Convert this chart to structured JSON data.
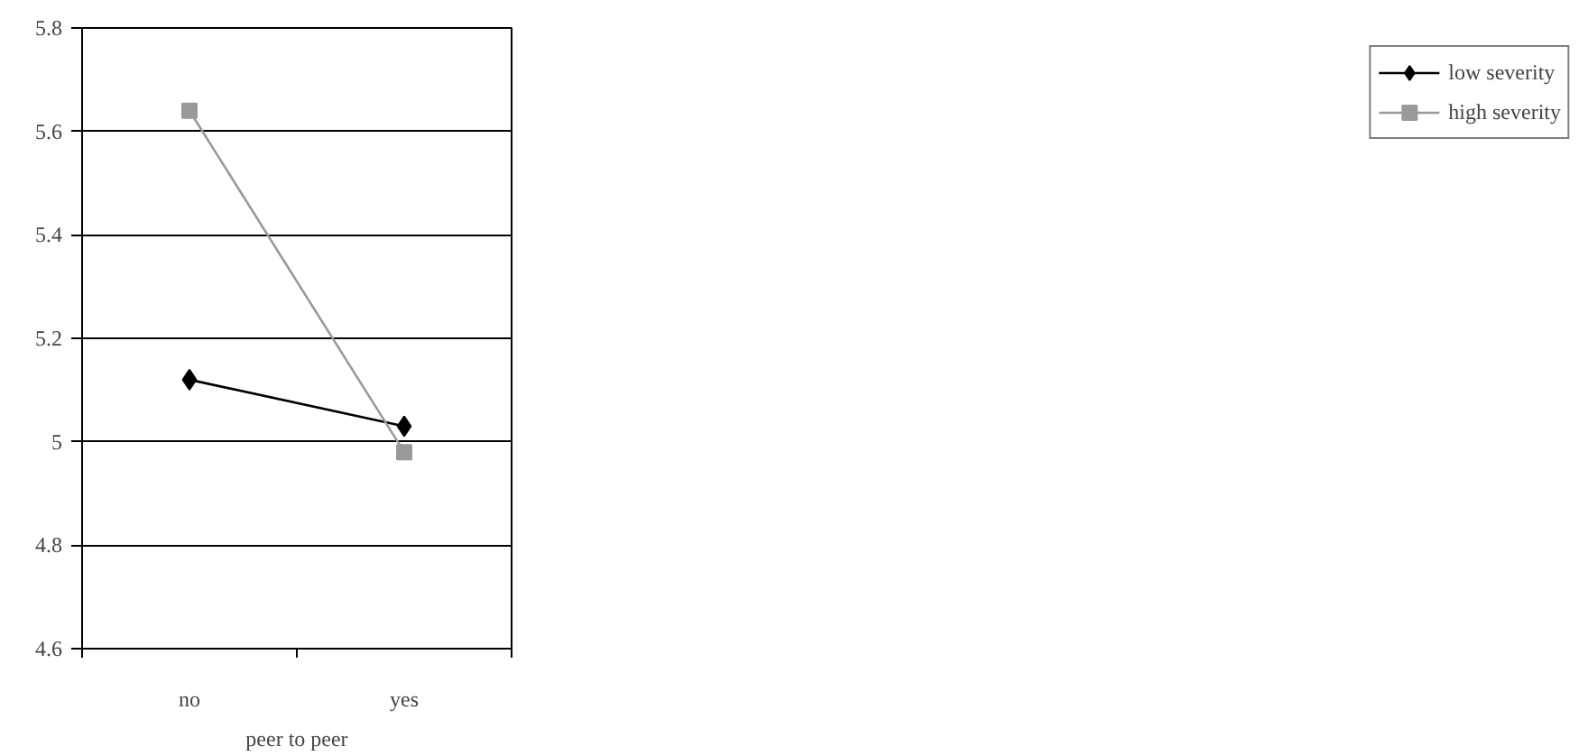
{
  "chart_data": {
    "type": "line",
    "xlabel": "peer to peer",
    "categories": [
      "no",
      "yes"
    ],
    "series": [
      {
        "name": "low severity",
        "color": "#000000",
        "marker": "diamond",
        "values": [
          5.12,
          5.03
        ]
      },
      {
        "name": "high severity",
        "color": "#999999",
        "marker": "square",
        "values": [
          5.64,
          4.98
        ]
      }
    ],
    "ylim": [
      4.6,
      5.8
    ],
    "yticks": [
      4.6,
      4.8,
      {
        "value": 5.0,
        "label": "5"
      },
      5.2,
      5.4,
      5.6,
      5.8
    ],
    "grid": "y",
    "legend": "right",
    "line_style": "solid"
  }
}
